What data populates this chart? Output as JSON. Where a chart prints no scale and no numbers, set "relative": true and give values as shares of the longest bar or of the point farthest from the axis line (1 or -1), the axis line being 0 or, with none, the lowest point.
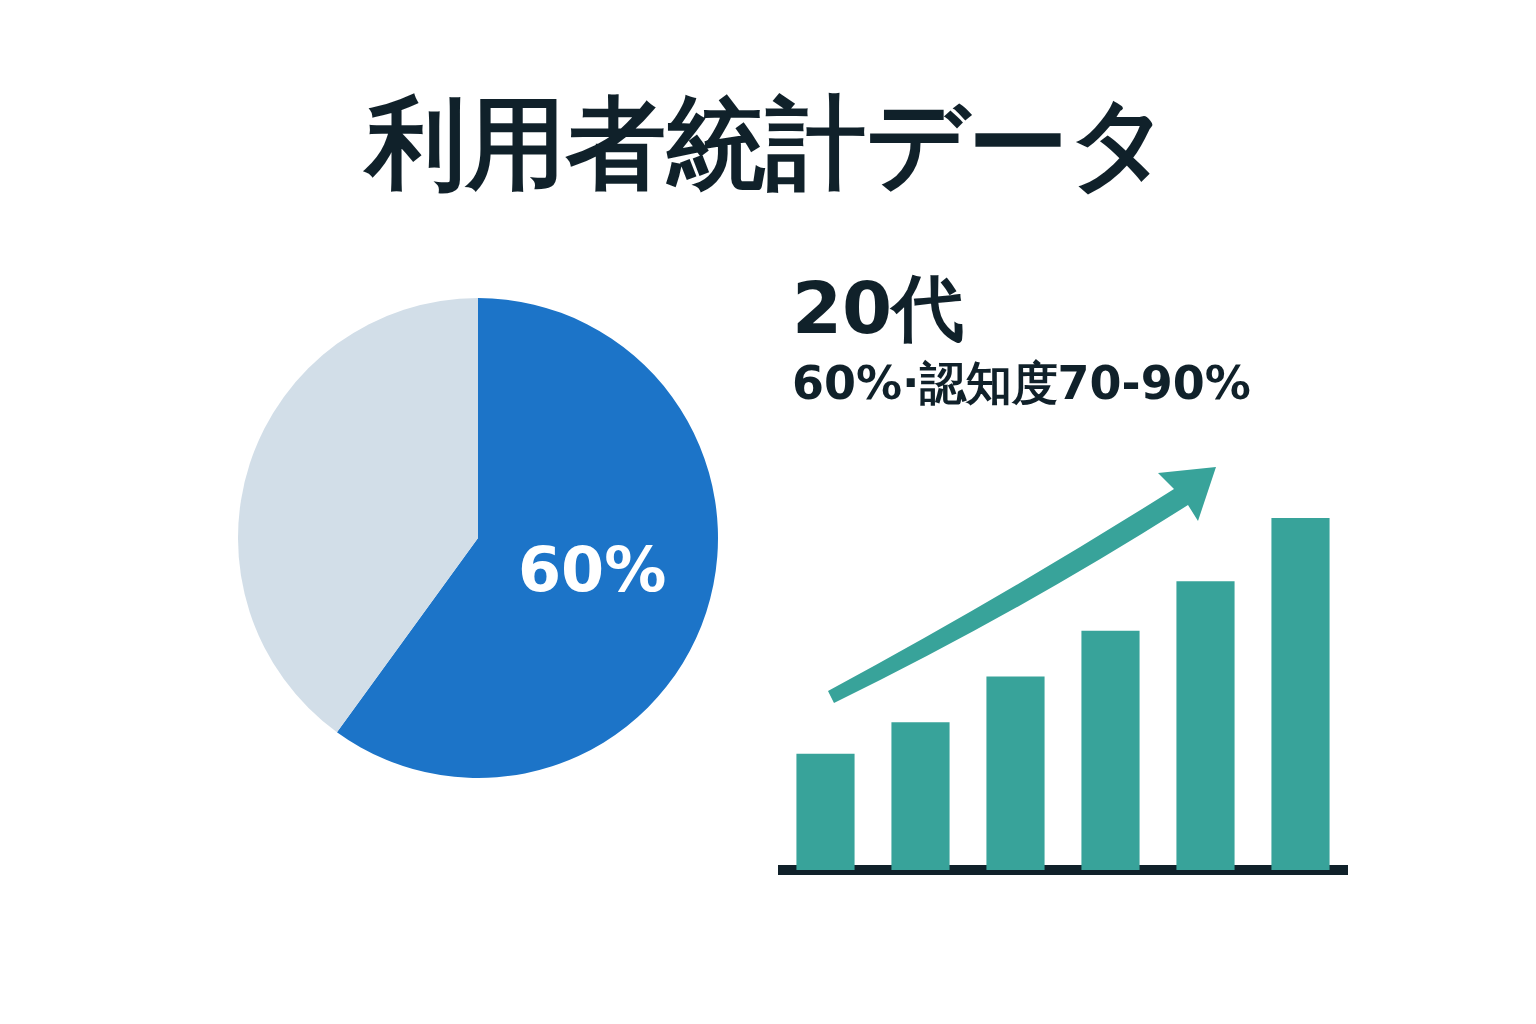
{
  "chart_data": [
    {
      "type": "pie",
      "title": "利用者統計データ",
      "categories": [
        null,
        null
      ],
      "values": [
        60,
        40
      ],
      "colors": [
        "#1c74c8",
        "#d2dee8"
      ],
      "value_labels": [
        "60%",
        null
      ]
    },
    {
      "type": "bar",
      "title": "20代",
      "subtitle": "60%·認知度70-90%",
      "relative": true,
      "categories": [
        null,
        null,
        null,
        null,
        null,
        null
      ],
      "values": [
        0.33,
        0.42,
        0.55,
        0.68,
        0.82,
        1
      ],
      "color": "#38a39a"
    }
  ]
}
